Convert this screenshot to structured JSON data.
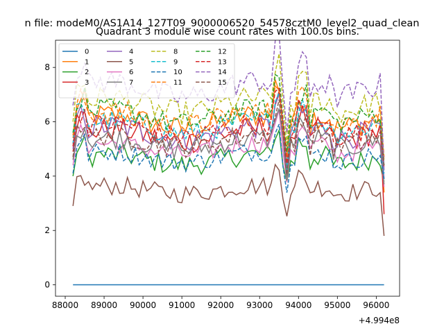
{
  "figure": {
    "suptitle": "n file: modeM0/AS1A14_127T09_9000006520_54578cztM0_level2_quad_clean",
    "title": "Quadrant 3 module wise count rates with 100.0s bins.",
    "offset_label": "+4.994e8"
  },
  "chart_data": {
    "type": "line",
    "title": "Quadrant 3 module wise count rates with 100.0s bins.",
    "xlabel": "",
    "ylabel": "",
    "x_offset_text": "+4.994e8",
    "xlim": [
      87750,
      96600
    ],
    "ylim": [
      -0.42,
      9.0
    ],
    "x_ticks": [
      88000,
      89000,
      90000,
      91000,
      92000,
      93000,
      94000,
      95000,
      96000
    ],
    "x_tick_labels": [
      "88000",
      "89000",
      "90000",
      "91000",
      "92000",
      "93000",
      "94000",
      "95000",
      "96000"
    ],
    "y_ticks": [
      0,
      2,
      4,
      6,
      8
    ],
    "y_tick_labels": [
      "0",
      "2",
      "4",
      "6",
      "8"
    ],
    "grid": false,
    "legend_position": "upper-left",
    "legend_columns": 4,
    "x_range_of_series": [
      88200,
      96200
    ],
    "points_per_series": 81,
    "series": [
      {
        "name": "0",
        "color": "#1f77b4",
        "dash": "solid",
        "constant": 0
      },
      {
        "name": "1",
        "color": "#ff7f0e",
        "dash": "solid",
        "level": 6.0,
        "spread": 0.45,
        "end": 3.4
      },
      {
        "name": "2",
        "color": "#2ca02c",
        "dash": "solid",
        "level": 4.6,
        "spread": 0.4,
        "end": 3.8
      },
      {
        "name": "3",
        "color": "#d62728",
        "dash": "solid",
        "level": 5.5,
        "spread": 0.45,
        "end": 2.6
      },
      {
        "name": "4",
        "color": "#9467bd",
        "dash": "solid",
        "level": 5.6,
        "spread": 0.45,
        "end": 3.9
      },
      {
        "name": "5",
        "color": "#8c564b",
        "dash": "solid",
        "level": 3.5,
        "spread": 0.35,
        "end": 1.8
      },
      {
        "name": "6",
        "color": "#e377c2",
        "dash": "solid",
        "level": 5.0,
        "spread": 0.35,
        "end": 3.6
      },
      {
        "name": "7",
        "color": "#7f7f7f",
        "dash": "solid",
        "level": 5.2,
        "spread": 0.4,
        "end": 3.7
      },
      {
        "name": "8",
        "color": "#bcbd22",
        "dash": "dashed",
        "level": 6.6,
        "spread": 0.45,
        "end": 4.6
      },
      {
        "name": "9",
        "color": "#17becf",
        "dash": "dashed",
        "level": 5.8,
        "spread": 0.4,
        "end": 4.1
      },
      {
        "name": "10",
        "color": "#1f77b4",
        "dash": "dashed",
        "level": 4.7,
        "spread": 0.35,
        "end": 3.9
      },
      {
        "name": "11",
        "color": "#ff7f0e",
        "dash": "dashed",
        "level": 6.1,
        "spread": 0.45,
        "end": 4.7
      },
      {
        "name": "12",
        "color": "#2ca02c",
        "dash": "dashed",
        "level": 6.2,
        "spread": 0.4,
        "end": 4.4
      },
      {
        "name": "13",
        "color": "#d62728",
        "dash": "dashed",
        "level": 5.7,
        "spread": 0.4,
        "end": 4.3
      },
      {
        "name": "14",
        "color": "#9467bd",
        "dash": "dashed",
        "level": 7.2,
        "spread": 0.45,
        "end": 4.2
      },
      {
        "name": "15",
        "color": "#8c564b",
        "dash": "dashed",
        "level": 5.3,
        "spread": 0.4,
        "end": 4.4
      }
    ]
  }
}
